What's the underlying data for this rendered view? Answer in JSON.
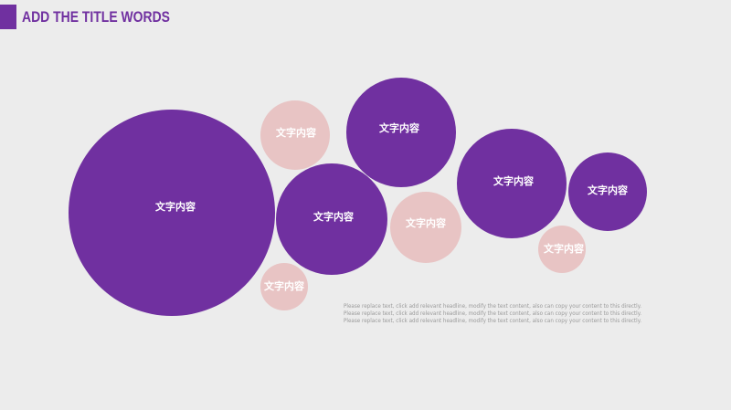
{
  "header": {
    "title": "ADD THE TITLE WORDS"
  },
  "circles": [
    "文字内容",
    "文字内容",
    "文字内容",
    "文字内容",
    "文字内容",
    "文字内容",
    "文字内容",
    "文字内容",
    "文字内容"
  ],
  "body": {
    "lines": [
      "Please replace text, click add relevant headline, modify the text content, also can copy your content to this directly.",
      "Please replace text, click add relevant headline, modify the text content, also can copy your content to this directly.",
      "Please replace text, click add relevant headline, modify the text content, also can copy your content to this directly."
    ]
  }
}
